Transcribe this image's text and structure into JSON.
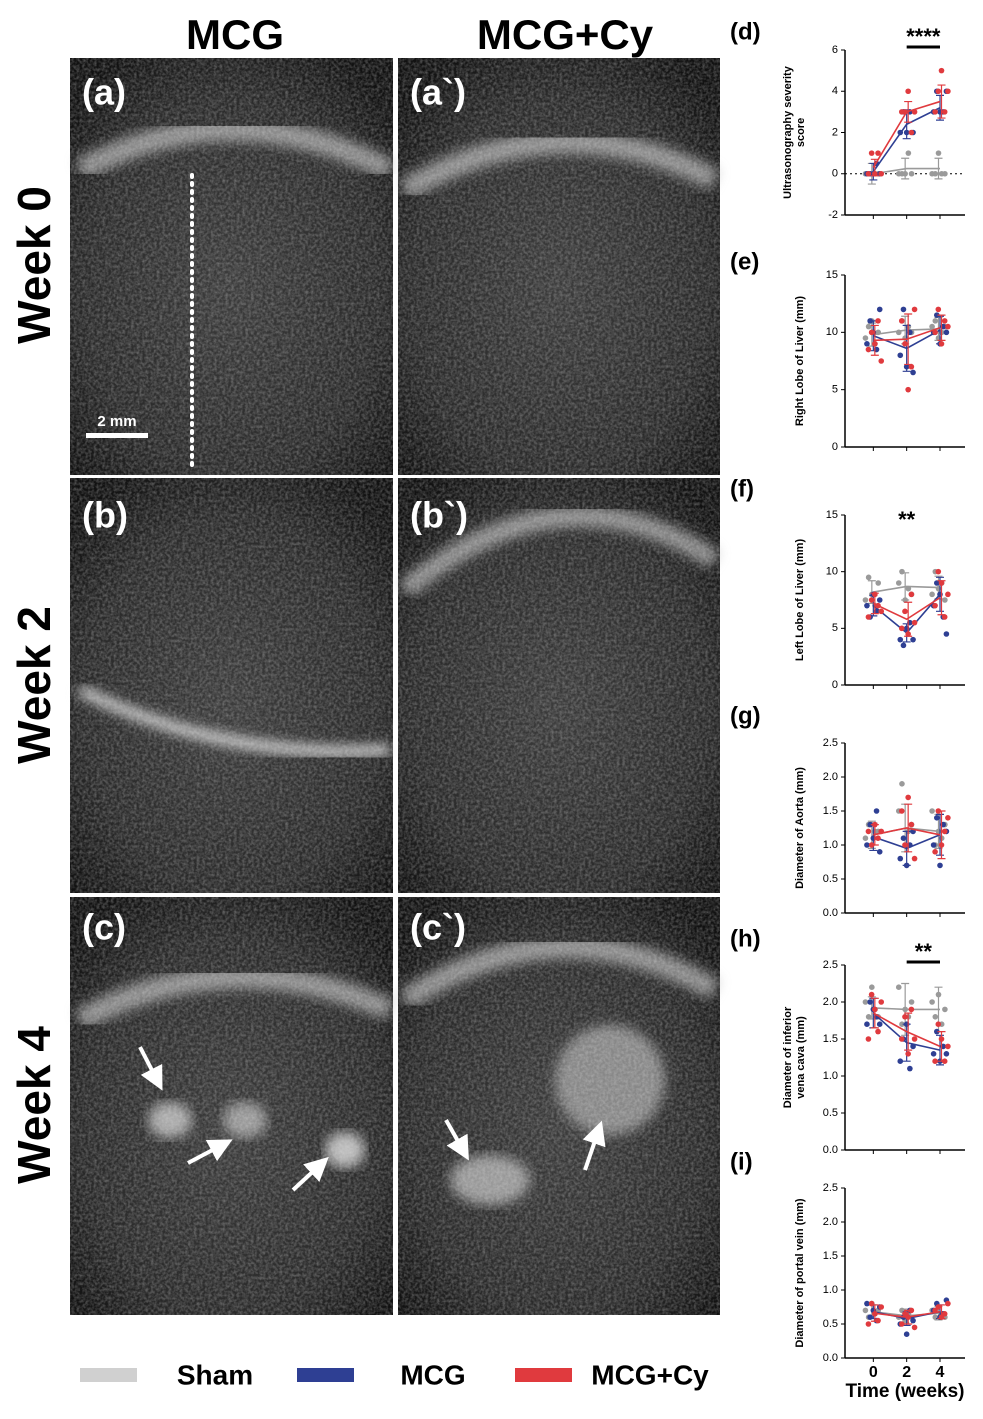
{
  "figure": {
    "columns": [
      "MCG",
      "MCG+Cy"
    ],
    "rows": [
      "Week 0",
      "Week 2",
      "Week 4"
    ],
    "panels": [
      "(a)",
      "(a`)",
      "(b)",
      "(b`)",
      "(c)",
      "(c`)"
    ],
    "scale_bar": "2 mm"
  },
  "chart_data": [
    {
      "type": "line",
      "label": "(d)",
      "ylabel": [
        "Ultrasonography severity",
        "score"
      ],
      "x": [
        0,
        2,
        4
      ],
      "xlim": [
        -1.7,
        5.5
      ],
      "ylim": [
        -2,
        6
      ],
      "yticks": [
        -2,
        0,
        2,
        4,
        6
      ],
      "hline": 0,
      "annotations": [
        {
          "text": "****",
          "x": [
            2,
            4
          ]
        }
      ],
      "series": [
        {
          "name": "Sham",
          "color": "#9a9a9a",
          "values": [
            0,
            0.25,
            0.25
          ],
          "errors": [
            0.5,
            0.5,
            0.5
          ],
          "points": [
            [
              0,
              0,
              0,
              0,
              0
            ],
            [
              0,
              0,
              0,
              1,
              0
            ],
            [
              0,
              0,
              1,
              0,
              0
            ]
          ]
        },
        {
          "name": "MCG",
          "color": "#2e3f93",
          "values": [
            0.1,
            2.4,
            3.2
          ],
          "errors": [
            0.4,
            0.7,
            0.6
          ],
          "points": [
            [
              0,
              0,
              0,
              0.5,
              0
            ],
            [
              2,
              3,
              2,
              3,
              2
            ],
            [
              3,
              4,
              3,
              3,
              4
            ]
          ]
        },
        {
          "name": "MCG+Cy",
          "color": "#e03a3e",
          "values": [
            0.3,
            3.0,
            3.5
          ],
          "errors": [
            0.4,
            0.5,
            0.8
          ],
          "points": [
            [
              0,
              1,
              0,
              1,
              0
            ],
            [
              3,
              3,
              4,
              2,
              3
            ],
            [
              3,
              4,
              5,
              3,
              4
            ]
          ]
        }
      ]
    },
    {
      "type": "line",
      "label": "(e)",
      "ylabel": "Right Lobe of Liver (mm)",
      "x": [
        0,
        2,
        4
      ],
      "xlim": [
        -1.7,
        5.5
      ],
      "ylim": [
        0,
        15
      ],
      "yticks": [
        0,
        5,
        10,
        15
      ],
      "series": [
        {
          "name": "Sham",
          "color": "#9a9a9a",
          "values": [
            9.8,
            10.2,
            10.3
          ],
          "errors": [
            1.0,
            1.2,
            1.0
          ],
          "points": [
            [
              9.5,
              10.5,
              11,
              9,
              10
            ],
            [
              10,
              11,
              9.5,
              10.5,
              10
            ],
            [
              10.5,
              11,
              9.5,
              10,
              10.5
            ]
          ]
        },
        {
          "name": "MCG",
          "color": "#2e3f93",
          "values": [
            9.7,
            8.6,
            10.2
          ],
          "errors": [
            1.3,
            2.0,
            1.2
          ],
          "points": [
            [
              9,
              11,
              10,
              8.5,
              12
            ],
            [
              8,
              12,
              7,
              10,
              6.5
            ],
            [
              10,
              11.5,
              9,
              10.5,
              10
            ]
          ]
        },
        {
          "name": "MCG+Cy",
          "color": "#e03a3e",
          "values": [
            9.3,
            9.4,
            10.4
          ],
          "errors": [
            1.3,
            2.2,
            1.1
          ],
          "points": [
            [
              8.5,
              10,
              9,
              11,
              7.5
            ],
            [
              11,
              9,
              5,
              7,
              12
            ],
            [
              10,
              12,
              9,
              11,
              10.5
            ]
          ]
        }
      ]
    },
    {
      "type": "line",
      "label": "(f)",
      "ylabel": "Left Lobe of Liver (mm)",
      "x": [
        0,
        2,
        4
      ],
      "xlim": [
        -1.7,
        5.5
      ],
      "ylim": [
        0,
        15
      ],
      "yticks": [
        0,
        5,
        10,
        15
      ],
      "annotations": [
        {
          "text": "**",
          "x": [
            2
          ]
        }
      ],
      "series": [
        {
          "name": "Sham",
          "color": "#9a9a9a",
          "values": [
            8.2,
            8.7,
            8.6
          ],
          "errors": [
            1.0,
            1.2,
            1.0
          ],
          "points": [
            [
              7.5,
              9.5,
              8,
              7,
              9
            ],
            [
              9,
              10,
              7.5,
              8.5,
              8
            ],
            [
              8,
              10,
              8.5,
              9,
              7.5
            ]
          ]
        },
        {
          "name": "MCG",
          "color": "#2e3f93",
          "values": [
            7.0,
            4.6,
            8.0
          ],
          "errors": [
            0.9,
            0.8,
            1.5
          ],
          "points": [
            [
              7,
              6,
              8,
              6.5,
              7.5
            ],
            [
              4,
              3.5,
              5,
              5.5,
              4
            ],
            [
              7,
              9,
              8,
              6,
              4.5
            ]
          ]
        },
        {
          "name": "MCG+Cy",
          "color": "#e03a3e",
          "values": [
            7.2,
            5.8,
            7.7
          ],
          "errors": [
            0.9,
            1.5,
            1.5
          ],
          "points": [
            [
              6,
              7.5,
              8,
              7,
              6.5
            ],
            [
              5,
              6.5,
              4.5,
              8,
              5.5
            ],
            [
              7,
              10,
              9,
              6,
              8
            ]
          ]
        }
      ]
    },
    {
      "type": "line",
      "label": "(g)",
      "ylabel": "Diameter of Aorta (mm)",
      "x": [
        0,
        2,
        4
      ],
      "xlim": [
        -1.7,
        5.5
      ],
      "ylim": [
        0,
        2.5
      ],
      "yticks": [
        {
          "value": 0,
          "label": "0.0"
        },
        0.5,
        {
          "value": 1,
          "label": "1.0"
        },
        1.5,
        {
          "value": 2,
          "label": "2.0"
        },
        2.5
      ],
      "series": [
        {
          "name": "Sham",
          "color": "#9a9a9a",
          "values": [
            1.15,
            1.25,
            1.2
          ],
          "errors": [
            0.2,
            0.35,
            0.25
          ],
          "points": [
            [
              1.1,
              1.3,
              1.0,
              1.2,
              1.2
            ],
            [
              1.5,
              1.9,
              1.0,
              1.2,
              1.3
            ],
            [
              1.5,
              1.0,
              1.2,
              1.1,
              1.3
            ]
          ]
        },
        {
          "name": "MCG",
          "color": "#2e3f93",
          "values": [
            1.12,
            0.95,
            1.15
          ],
          "errors": [
            0.2,
            0.25,
            0.3
          ],
          "points": [
            [
              1.0,
              1.3,
              1.1,
              1.5,
              0.9
            ],
            [
              0.8,
              1.1,
              0.7,
              1.0,
              1.2
            ],
            [
              1.0,
              1.4,
              0.7,
              1.3,
              1.2
            ]
          ]
        },
        {
          "name": "MCG+Cy",
          "color": "#e03a3e",
          "values": [
            1.15,
            1.25,
            1.15
          ],
          "errors": [
            0.15,
            0.35,
            0.35
          ],
          "points": [
            [
              1.2,
              1.0,
              1.3,
              1.1,
              1.2
            ],
            [
              1.5,
              1.0,
              1.7,
              1.3,
              0.8
            ],
            [
              0.9,
              1.5,
              1.0,
              1.2,
              1.4
            ]
          ]
        }
      ]
    },
    {
      "type": "line",
      "label": "(h)",
      "ylabel": [
        "Diameter of inferior",
        "vena cava (mm)"
      ],
      "x": [
        0,
        2,
        4
      ],
      "xlim": [
        -1.7,
        5.5
      ],
      "ylim": [
        0,
        2.5
      ],
      "yticks": [
        {
          "value": 0,
          "label": "0.0"
        },
        0.5,
        {
          "value": 1,
          "label": "1.0"
        },
        1.5,
        {
          "value": 2,
          "label": "2.0"
        },
        2.5
      ],
      "annotations": [
        {
          "text": "**",
          "x": [
            2,
            4
          ]
        }
      ],
      "series": [
        {
          "name": "Sham",
          "color": "#9a9a9a",
          "values": [
            1.92,
            1.9,
            1.9
          ],
          "errors": [
            0.15,
            0.35,
            0.3
          ],
          "points": [
            [
              2.0,
              1.8,
              2.2,
              1.9,
              1.8
            ],
            [
              2.2,
              1.7,
              1.9,
              1.8,
              2.0
            ],
            [
              2.0,
              1.8,
              2.1,
              1.7,
              1.9
            ]
          ]
        },
        {
          "name": "MCG",
          "color": "#2e3f93",
          "values": [
            1.85,
            1.45,
            1.35
          ],
          "errors": [
            0.2,
            0.25,
            0.2
          ],
          "points": [
            [
              1.7,
              2.0,
              1.9,
              1.8,
              1.7
            ],
            [
              1.2,
              1.5,
              1.7,
              1.1,
              1.4
            ],
            [
              1.3,
              1.6,
              1.2,
              1.4,
              1.3
            ]
          ]
        },
        {
          "name": "MCG+Cy",
          "color": "#e03a3e",
          "values": [
            1.85,
            1.6,
            1.4
          ],
          "errors": [
            0.2,
            0.25,
            0.2
          ],
          "points": [
            [
              1.5,
              2.1,
              1.9,
              1.6,
              2.0
            ],
            [
              1.5,
              1.8,
              1.3,
              1.9,
              1.5
            ],
            [
              1.2,
              1.7,
              1.5,
              1.2,
              1.4
            ]
          ]
        }
      ]
    },
    {
      "type": "line",
      "label": "(i)",
      "ylabel": "Diameter of portal vein (mm)",
      "xlabel": "Time (weeks)",
      "x": [
        0,
        2,
        4
      ],
      "xlim": [
        -1.7,
        5.5
      ],
      "xticks": [
        0,
        2,
        4
      ],
      "ylim": [
        0,
        2.5
      ],
      "yticks": [
        {
          "value": 0,
          "label": "0.0"
        },
        0.5,
        {
          "value": 1,
          "label": "1.0"
        },
        1.5,
        {
          "value": 2,
          "label": "2.0"
        },
        2.5
      ],
      "series": [
        {
          "name": "Sham",
          "color": "#9a9a9a",
          "values": [
            0.68,
            0.62,
            0.66
          ],
          "errors": [
            0.1,
            0.1,
            0.1
          ],
          "points": [
            [
              0.7,
              0.6,
              0.8,
              0.65,
              0.7
            ],
            [
              0.6,
              0.7,
              0.55,
              0.65,
              0.6
            ],
            [
              0.7,
              0.6,
              0.75,
              0.65,
              0.6
            ]
          ]
        },
        {
          "name": "MCG",
          "color": "#2e3f93",
          "values": [
            0.68,
            0.58,
            0.68
          ],
          "errors": [
            0.1,
            0.1,
            0.1
          ],
          "points": [
            [
              0.8,
              0.6,
              0.7,
              0.55,
              0.75
            ],
            [
              0.5,
              0.6,
              0.35,
              0.7,
              0.55
            ],
            [
              0.7,
              0.8,
              0.6,
              0.65,
              0.85
            ]
          ]
        },
        {
          "name": "MCG+Cy",
          "color": "#e03a3e",
          "values": [
            0.66,
            0.6,
            0.68
          ],
          "errors": [
            0.12,
            0.1,
            0.1
          ],
          "points": [
            [
              0.5,
              0.8,
              0.65,
              0.55,
              0.75
            ],
            [
              0.5,
              0.65,
              0.6,
              0.7,
              0.45
            ],
            [
              0.7,
              0.75,
              0.6,
              0.65,
              0.8
            ]
          ]
        }
      ]
    }
  ]
}
